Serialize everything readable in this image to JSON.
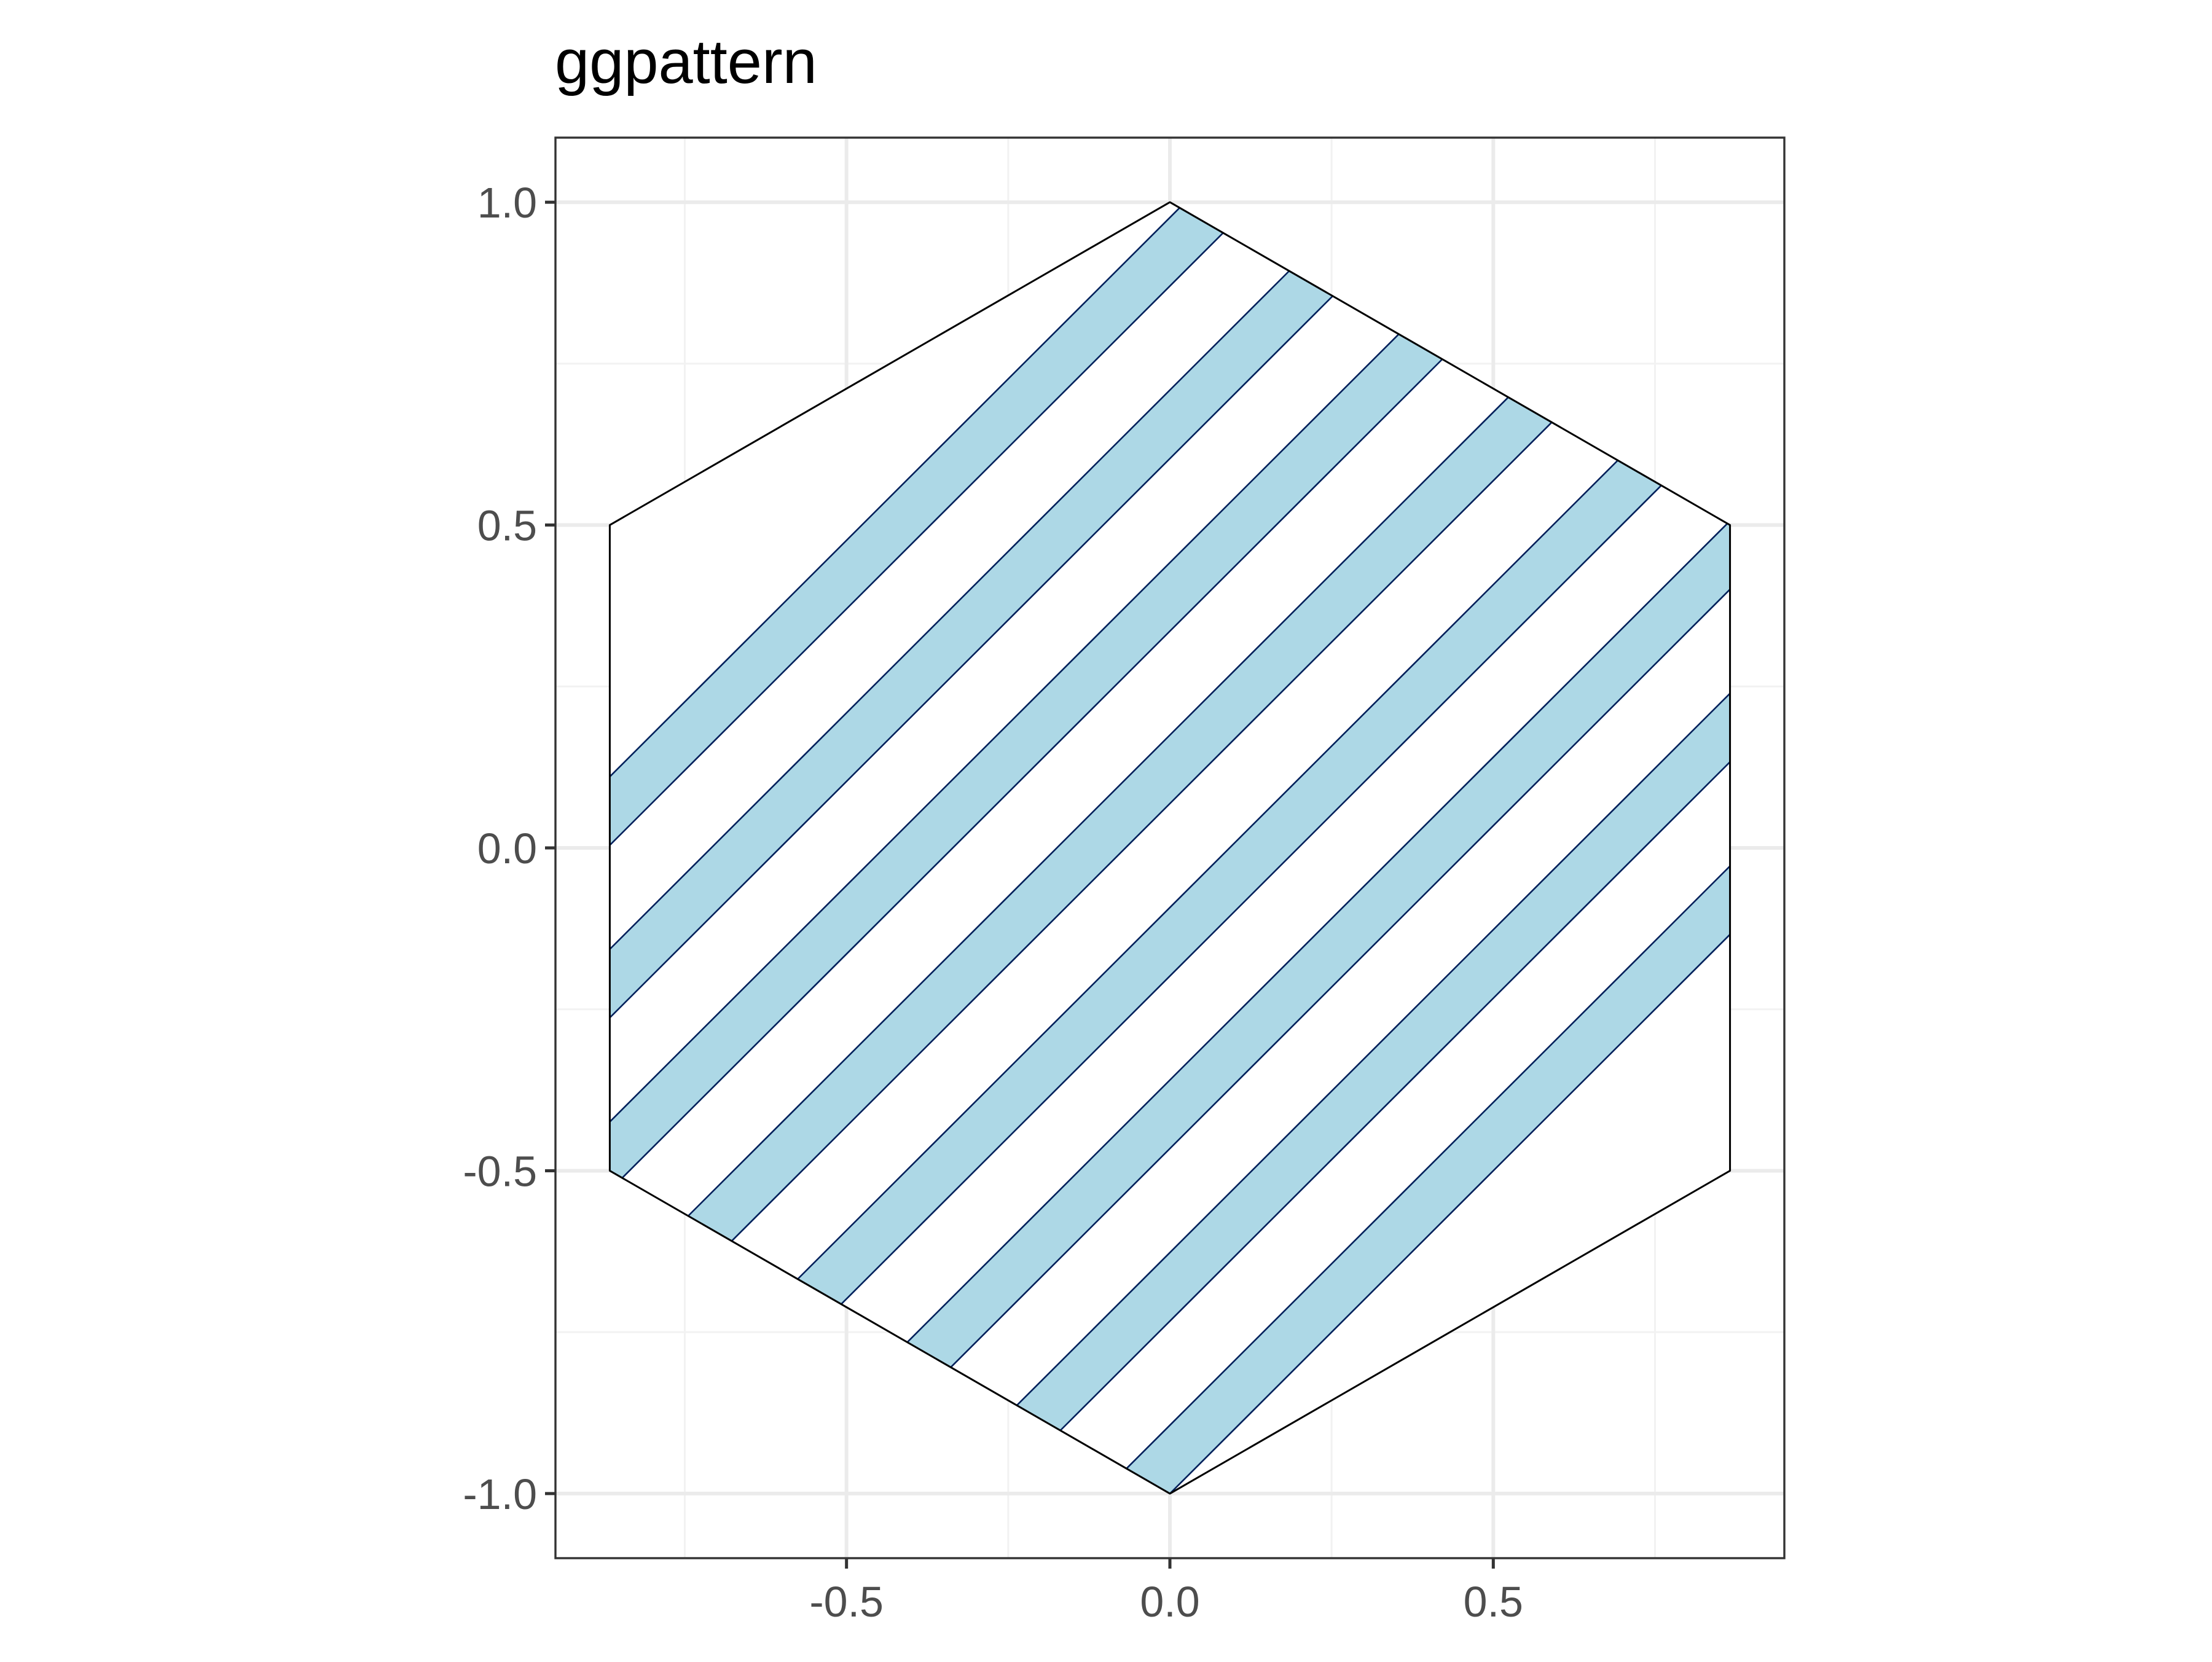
{
  "chart_data": {
    "type": "polygon",
    "title": "ggpattern",
    "xlabel": "",
    "ylabel": "",
    "xlim": [
      -0.95,
      0.95
    ],
    "ylim": [
      -1.1,
      1.1
    ],
    "x_ticks": [
      -0.5,
      0.0,
      0.5
    ],
    "x_tick_labels": [
      "-0.5",
      "0.0",
      "0.5"
    ],
    "y_ticks": [
      -1.0,
      -0.5,
      0.0,
      0.5,
      1.0
    ],
    "y_tick_labels": [
      "-1.0",
      "-0.5",
      "0.0",
      "0.5",
      "1.0"
    ],
    "grid": true,
    "legend": "none",
    "polygon": {
      "shape": "hexagon",
      "vertices": [
        [
          0.0,
          1.0
        ],
        [
          0.866,
          0.5
        ],
        [
          0.866,
          -0.5
        ],
        [
          0.0,
          -1.0
        ],
        [
          -0.866,
          -0.5
        ],
        [
          -0.866,
          0.5
        ]
      ],
      "fill": "#ffffff",
      "outline": "#000000"
    },
    "pattern": {
      "type": "stripe",
      "angle_degrees": 45,
      "fill": "#add8e6",
      "line_color": "#00205b",
      "stripes": [
        {
          "from": -1.0,
          "to": -0.8941
        },
        {
          "from": -0.7328,
          "to": -0.6267
        },
        {
          "from": -0.4656,
          "to": -0.3595
        },
        {
          "from": -0.1984,
          "to": -0.0923
        },
        {
          "from": 0.0687,
          "to": 0.1748
        },
        {
          "from": 0.3357,
          "to": 0.4418
        },
        {
          "from": 0.603,
          "to": 0.7091
        },
        {
          "from": 0.8702,
          "to": 0.9763
        }
      ]
    },
    "colors": {
      "panel_border": "#333333",
      "grid_major": "#ebebeb",
      "grid_minor": "#f2f2f2",
      "tick": "#333333"
    }
  }
}
